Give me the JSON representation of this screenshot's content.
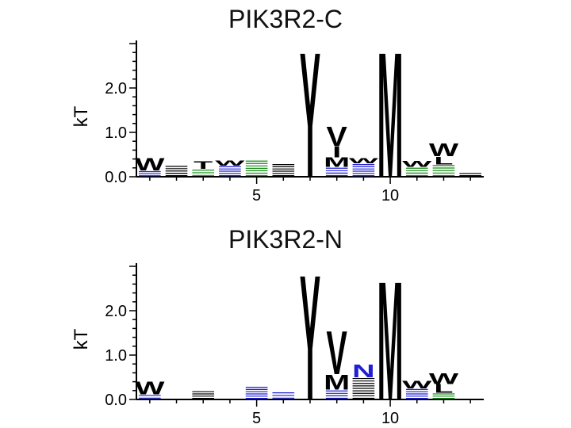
{
  "chart_data": [
    {
      "type": "sequence-logo",
      "title": "PIK3R2-C",
      "ylabel": "kT",
      "ylim": [
        0,
        3.0
      ],
      "yticks": [
        "0.0",
        "1.0",
        "2.0"
      ],
      "xlim": [
        0.5,
        13.5
      ],
      "xticks": [
        "5",
        "10"
      ],
      "positions": [
        {
          "pos": 1,
          "letters": [
            {
              "char": "W",
              "height": 0.28,
              "color": "#000000"
            },
            {
              "char": "≡",
              "height": 0.14,
              "color": "#1f1fd6"
            }
          ]
        },
        {
          "pos": 2,
          "letters": [
            {
              "char": "~",
              "height": 0.26,
              "color": "#000000"
            }
          ]
        },
        {
          "pos": 3,
          "letters": [
            {
              "char": "T",
              "height": 0.18,
              "color": "#000000"
            },
            {
              "char": "≡",
              "height": 0.18,
              "color": "#138a13"
            }
          ]
        },
        {
          "pos": 4,
          "letters": [
            {
              "char": "W",
              "height": 0.12,
              "color": "#000000"
            },
            {
              "char": "≡",
              "height": 0.25,
              "color": "#1f1fd6"
            }
          ]
        },
        {
          "pos": 5,
          "letters": [
            {
              "char": "≡",
              "height": 0.38,
              "color": "#138a13"
            }
          ]
        },
        {
          "pos": 6,
          "letters": [
            {
              "char": "≡",
              "height": 0.3,
              "color": "#000000"
            }
          ]
        },
        {
          "pos": 7,
          "letters": [
            {
              "char": "Y",
              "height": 2.9,
              "color": "#000000"
            }
          ]
        },
        {
          "pos": 8,
          "letters": [
            {
              "char": "V",
              "height": 0.45,
              "color": "#000000"
            },
            {
              "char": "I",
              "height": 0.25,
              "color": "#000000"
            },
            {
              "char": "M",
              "height": 0.22,
              "color": "#000000"
            },
            {
              "char": "≡",
              "height": 0.22,
              "color": "#1f1fd6"
            }
          ]
        },
        {
          "pos": 9,
          "letters": [
            {
              "char": "W",
              "height": 0.12,
              "color": "#000000"
            },
            {
              "char": "≡",
              "height": 0.3,
              "color": "#1f1fd6"
            }
          ]
        },
        {
          "pos": 10,
          "letters": [
            {
              "char": "M",
              "height": 2.9,
              "color": "#000000"
            }
          ]
        },
        {
          "pos": 11,
          "letters": [
            {
              "char": "W",
              "height": 0.14,
              "color": "#000000"
            },
            {
              "char": "≡",
              "height": 0.22,
              "color": "#138a13"
            }
          ]
        },
        {
          "pos": 12,
          "letters": [
            {
              "char": "W",
              "height": 0.3,
              "color": "#000000"
            },
            {
              "char": "L",
              "height": 0.18,
              "color": "#000000"
            },
            {
              "char": "≡",
              "height": 0.28,
              "color": "#138a13"
            }
          ]
        },
        {
          "pos": 13,
          "letters": [
            {
              "char": "—",
              "height": 0.1,
              "color": "#000000"
            }
          ]
        }
      ]
    },
    {
      "type": "sequence-logo",
      "title": "PIK3R2-N",
      "ylabel": "kT",
      "ylim": [
        0,
        3.0
      ],
      "yticks": [
        "0.0",
        "1.0",
        "2.0"
      ],
      "xlim": [
        0.5,
        13.5
      ],
      "xticks": [
        "5",
        "10"
      ],
      "positions": [
        {
          "pos": 1,
          "letters": [
            {
              "char": "W",
              "height": 0.3,
              "color": "#000000"
            },
            {
              "char": "≡",
              "height": 0.12,
              "color": "#1f1fd6"
            }
          ]
        },
        {
          "pos": 2,
          "letters": []
        },
        {
          "pos": 3,
          "letters": [
            {
              "char": "≡",
              "height": 0.2,
              "color": "#000000"
            }
          ]
        },
        {
          "pos": 4,
          "letters": []
        },
        {
          "pos": 5,
          "letters": [
            {
              "char": "≡",
              "height": 0.3,
              "color": "#1f1fd6"
            }
          ]
        },
        {
          "pos": 6,
          "letters": [
            {
              "char": "≡",
              "height": 0.18,
              "color": "#1f1fd6"
            }
          ]
        },
        {
          "pos": 7,
          "letters": [
            {
              "char": "Y",
              "height": 2.9,
              "color": "#000000"
            }
          ]
        },
        {
          "pos": 8,
          "letters": [
            {
              "char": "V",
              "height": 1.0,
              "color": "#000000"
            },
            {
              "char": "M",
              "height": 0.35,
              "color": "#000000"
            },
            {
              "char": "≡",
              "height": 0.22,
              "color": "#1f1fd6"
            }
          ]
        },
        {
          "pos": 9,
          "letters": [
            {
              "char": "N",
              "height": 0.3,
              "color": "#1f1fd6"
            },
            {
              "char": "≡",
              "height": 0.5,
              "color": "#000000"
            }
          ]
        },
        {
          "pos": 10,
          "letters": [
            {
              "char": "M",
              "height": 2.75,
              "color": "#000000"
            }
          ]
        },
        {
          "pos": 11,
          "letters": [
            {
              "char": "W",
              "height": 0.18,
              "color": "#000000"
            },
            {
              "char": "≡",
              "height": 0.25,
              "color": "#1f1fd6"
            }
          ]
        },
        {
          "pos": 12,
          "letters": [
            {
              "char": "W",
              "height": 0.25,
              "color": "#000000"
            },
            {
              "char": "L",
              "height": 0.2,
              "color": "#000000"
            },
            {
              "char": "≡",
              "height": 0.15,
              "color": "#138a13"
            }
          ]
        },
        {
          "pos": 13,
          "letters": []
        }
      ]
    }
  ]
}
